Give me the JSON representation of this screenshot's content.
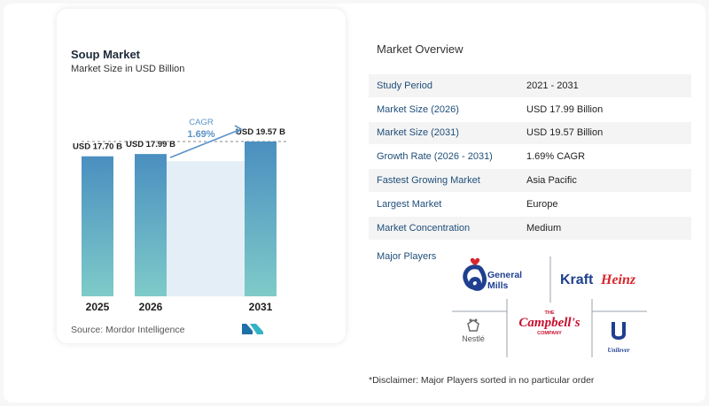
{
  "chart_data": {
    "type": "bar",
    "title": "Soup Market",
    "subtitle": "Market Size in USD Billion",
    "categories": [
      "2025",
      "2026",
      "2031"
    ],
    "values": [
      17.7,
      17.99,
      19.57
    ],
    "value_labels": [
      "USD 17.70 B",
      "USD 17.99 B",
      "USD 19.57 B"
    ],
    "cagr_label": "CAGR",
    "cagr_value": "1.69%",
    "ylim": [
      0,
      19.57
    ],
    "xlabel": "",
    "ylabel": "",
    "grid": false,
    "colors": {
      "bar_top": "#4a8fc0",
      "bar_bottom": "#7ecbc9",
      "cagr_band": "#e4eef7",
      "cagr_text": "#5b93c7",
      "dashed_line": "#8a8a8a"
    }
  },
  "source": "Source:",
  "source_name": "Mordor Intelligence",
  "overview": {
    "title": "Market Overview",
    "rows": [
      {
        "key": "Study Period",
        "value": "2021 - 2031"
      },
      {
        "key": "Market Size (2026)",
        "value": "USD 17.99 Billion"
      },
      {
        "key": "Market Size (2031)",
        "value": "USD 19.57 Billion"
      },
      {
        "key": "Growth Rate (2026 - 2031)",
        "value": "1.69% CAGR"
      },
      {
        "key": "Fastest Growing Market",
        "value": "Asia Pacific"
      },
      {
        "key": "Largest Market",
        "value": "Europe"
      },
      {
        "key": "Market Concentration",
        "value": "Medium"
      }
    ]
  },
  "players": {
    "label": "Major Players",
    "logos": {
      "general_mills": [
        "General",
        "Mills"
      ],
      "kraft_heinz": [
        "Kraft",
        "Heinz"
      ],
      "campbells_top": "THE",
      "campbells_name": "Campbell's",
      "campbells_bottom": "COMPANY",
      "nestle": "Nestlé",
      "unilever": "Unilever"
    }
  },
  "disclaimer": "*Disclaimer: Major Players sorted in no particular order"
}
